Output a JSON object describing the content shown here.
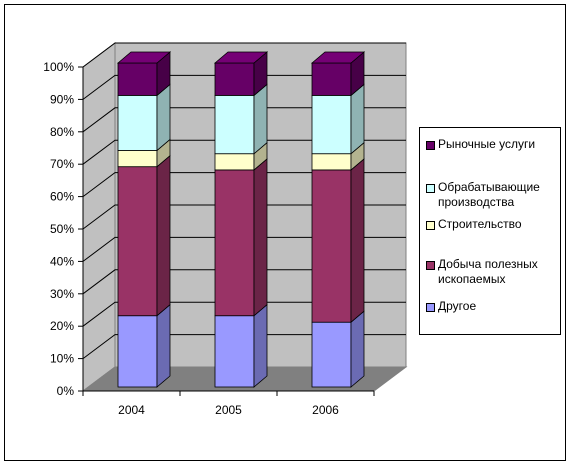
{
  "chart_data": {
    "type": "bar",
    "stacked": true,
    "percent": true,
    "three_d": true,
    "categories": [
      "2004",
      "2005",
      "2006"
    ],
    "y_ticks": [
      "0%",
      "10%",
      "20%",
      "30%",
      "40%",
      "50%",
      "60%",
      "70%",
      "80%",
      "90%",
      "100%"
    ],
    "ylim": [
      0,
      100
    ],
    "legend_position": "right",
    "series": [
      {
        "name": "Другое",
        "color": "#9999ff",
        "values": [
          22,
          22,
          20
        ]
      },
      {
        "name": "Добыча полезных ископаемых",
        "color": "#993366",
        "values": [
          46,
          45,
          47
        ]
      },
      {
        "name": "Строительство",
        "color": "#ffffcc",
        "values": [
          5,
          5,
          5
        ]
      },
      {
        "name": "Обрабатывающие производства",
        "color": "#ccffff",
        "values": [
          17,
          18,
          18
        ]
      },
      {
        "name": "Рыночные услуги",
        "color": "#660066",
        "values": [
          10,
          10,
          10
        ]
      }
    ],
    "wall_color": "#c0c0c0",
    "floor_color": "#808080"
  }
}
